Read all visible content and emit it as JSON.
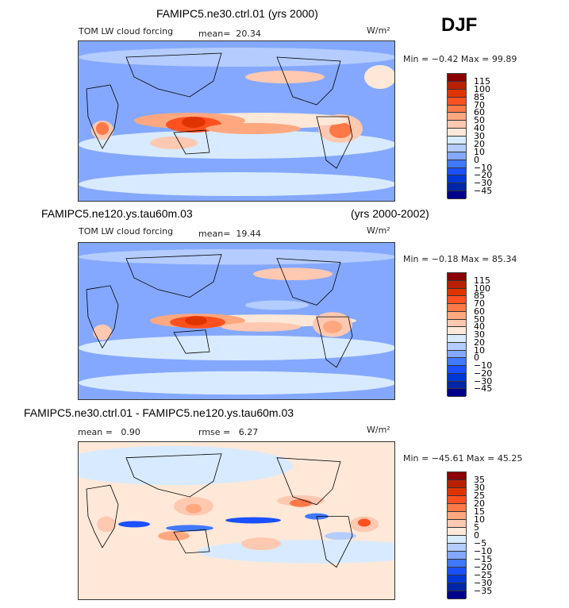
{
  "season": "DJF",
  "levels_colors": [
    "#00008b",
    "#0026a8",
    "#0038d8",
    "#1a50ff",
    "#4078ff",
    "#84a8ff",
    "#b4ccff",
    "#d8eaff",
    "#ffe8d8",
    "#ffc8b0",
    "#ffa880",
    "#ff7848",
    "#ff5020",
    "#e03400",
    "#b82000",
    "#8b0000"
  ],
  "panels": [
    {
      "title": "FAMIPC5.ne30.ctrl.01 (yrs 2000)",
      "variable": "TOM LW cloud forcing",
      "mean_label": "mean=",
      "mean": "20.34",
      "units": "W/m²",
      "minmax": "Min =  −0.42  Max =   99.89",
      "colorbar_labels": [
        "115",
        "100",
        "85",
        "70",
        "60",
        "50",
        "40",
        "30",
        "20",
        "10",
        "0",
        "−10",
        "−20",
        "−30",
        "−45"
      ]
    },
    {
      "title": "FAMIPC5.ne120.ys.tau60m.03",
      "years": "(yrs 2000-2002)",
      "variable": "TOM LW cloud forcing",
      "mean_label": "mean=",
      "mean": "19.44",
      "units": "W/m²",
      "minmax": "Min =  −0.18  Max =   85.34",
      "colorbar_labels": [
        "115",
        "100",
        "85",
        "70",
        "60",
        "50",
        "40",
        "30",
        "20",
        "10",
        "0",
        "−10",
        "−20",
        "−30",
        "−45"
      ]
    },
    {
      "title": "FAMIPC5.ne30.ctrl.01 - FAMIPC5.ne120.ys.tau60m.03",
      "mean_label": "mean =",
      "mean": "0.90",
      "rmse_label": "rmse =",
      "rmse": "6.27",
      "units": "W/m²",
      "minmax": "Min = −45.61  Max =   45.25",
      "colorbar_labels": [
        "35",
        "30",
        "25",
        "20",
        "15",
        "10",
        "5",
        "0",
        "−5",
        "−10",
        "−15",
        "−20",
        "−25",
        "−30",
        "−35"
      ]
    }
  ]
}
